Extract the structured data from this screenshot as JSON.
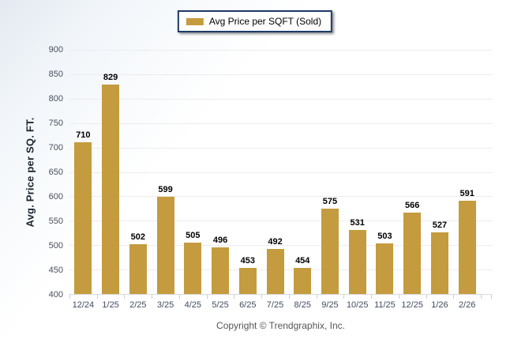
{
  "legend": {
    "label": "Avg Price per SQFT (Sold)"
  },
  "footer": {
    "copyright": "Copyright © Trendgraphix, Inc."
  },
  "colors": {
    "bar": "#c49b3e",
    "legend_border": "#1e3a66",
    "gridline": "#ececec",
    "axis_text": "#414c61",
    "value_label": "#000000"
  },
  "chart_data": {
    "type": "bar",
    "title": "",
    "xlabel": "",
    "ylabel": "Avg. Price per SQ. FT.",
    "legend": [
      "Avg Price per SQFT (Sold)"
    ],
    "legend_position": "top-center",
    "categories": [
      "12/24",
      "1/25",
      "2/25",
      "3/25",
      "4/25",
      "5/25",
      "6/25",
      "7/25",
      "8/25",
      "9/25",
      "10/25",
      "11/25",
      "12/25",
      "1/26",
      "2/26"
    ],
    "values": [
      710,
      829,
      502,
      599,
      505,
      496,
      453,
      492,
      454,
      575,
      531,
      503,
      566,
      527,
      591
    ],
    "ylim": [
      400,
      900
    ],
    "ytick_step": 50,
    "ytick_labels": [
      "400",
      "450",
      "500",
      "550",
      "600",
      "650",
      "700",
      "750",
      "800",
      "850",
      "900"
    ],
    "grid": true,
    "bar_color": "#c49b3e"
  }
}
